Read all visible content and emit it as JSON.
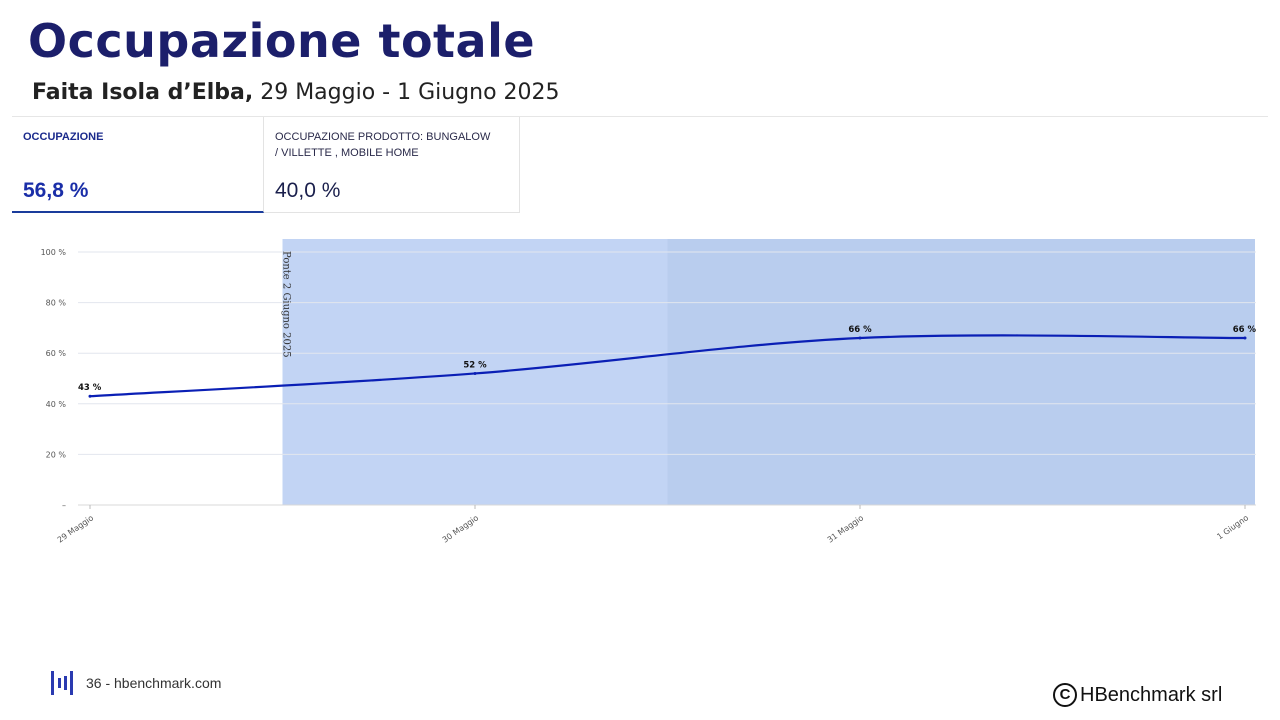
{
  "page": {
    "title": "Occupazione totale",
    "subtitle_bold": "Faita Isola d’Elba,",
    "subtitle_rest": " 29 Maggio - 1 Giugno 2025"
  },
  "kpis": [
    {
      "label": "OCCUPAZIONE",
      "value": "56,8 %"
    },
    {
      "label": "OCCUPAZIONE PRODOTTO: BUNGALOW / VILLETTE , MOBILE HOME",
      "value": "40,0 %"
    }
  ],
  "chart_data": {
    "type": "line",
    "x": [
      "29 Maggio",
      "30 Maggio",
      "31 Maggio",
      "1 Giugno"
    ],
    "series": [
      {
        "values": [
          43,
          52,
          66,
          66
        ],
        "labels": [
          "43 %",
          "52 %",
          "66 %",
          "66 %"
        ],
        "color": "#0a1fb5"
      }
    ],
    "ylim": [
      0,
      100
    ],
    "yticks": [
      "–",
      "20 %",
      "40 %",
      "60 %",
      "80 %",
      "100 %"
    ],
    "grid": true,
    "bands": [
      {
        "from": 0.5,
        "to": 1.5,
        "color": "#c2d4f4"
      },
      {
        "from": 1.5,
        "to": 3,
        "color": "#b9cdee"
      }
    ],
    "annotation": {
      "text": "Ponte 2 Giugno 2025",
      "at": 0.5
    }
  },
  "footer": {
    "page_text": "36 - hbenchmark.com",
    "copyright_symbol": "C",
    "copyright": "HBenchmark srl"
  },
  "colors": {
    "accent": "#1a3c9c",
    "title": "#1c1f6b",
    "line": "#0a1fb5"
  }
}
